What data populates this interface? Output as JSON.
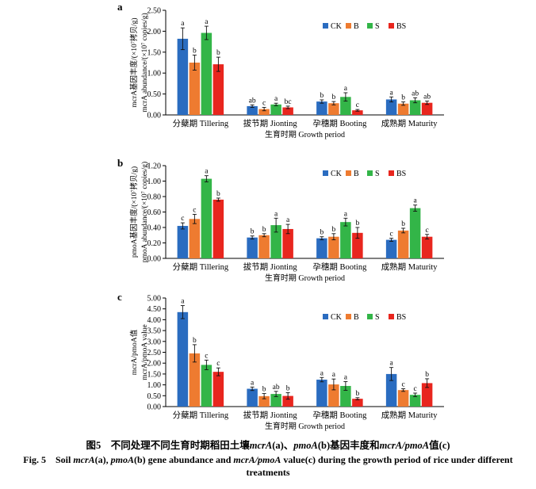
{
  "colors": {
    "CK": "#2a6cc0",
    "B": "#ee7b30",
    "S": "#33b548",
    "BS": "#e8261e"
  },
  "chart_data": [
    {
      "type": "bar",
      "panel_label": "a",
      "categories": [
        "分蘖期 Tillering",
        "拔节期 Jionting",
        "孕穗期 Booting",
        "成熟期 Maturity"
      ],
      "xlabel": "生育时期 Growth period",
      "ylabel_lines": [
        "mcrA基因丰度/(×10⁷拷贝/g)",
        "mcrA abundance/(×10⁷ copies/g)"
      ],
      "ylim": [
        0,
        2.5
      ],
      "yticks": [
        0,
        0.5,
        1.0,
        1.5,
        2.0,
        2.5
      ],
      "ytick_labels": [
        "0.00",
        "0.50",
        "1.00",
        "1.50",
        "2.00",
        "2.50"
      ],
      "legend": "top-right",
      "grid": false,
      "series": [
        {
          "name": "CK",
          "values": [
            1.82,
            0.21,
            0.32,
            0.37
          ],
          "errors": [
            0.26,
            0.03,
            0.04,
            0.06
          ],
          "letters": [
            "a",
            "ab",
            "b",
            "a"
          ]
        },
        {
          "name": "B",
          "values": [
            1.25,
            0.14,
            0.28,
            0.27
          ],
          "errors": [
            0.18,
            0.04,
            0.04,
            0.04
          ],
          "letters": [
            "b",
            "c",
            "b",
            "b"
          ]
        },
        {
          "name": "S",
          "values": [
            1.96,
            0.25,
            0.43,
            0.35
          ],
          "errors": [
            0.16,
            0.03,
            0.1,
            0.06
          ],
          "letters": [
            "a",
            "a",
            "a",
            "ab"
          ]
        },
        {
          "name": "BS",
          "values": [
            1.21,
            0.18,
            0.11,
            0.29
          ],
          "errors": [
            0.17,
            0.03,
            0.02,
            0.04
          ],
          "letters": [
            "b",
            "bc",
            "c",
            "ab"
          ]
        }
      ]
    },
    {
      "type": "bar",
      "panel_label": "b",
      "categories": [
        "分蘖期 Tillering",
        "拔节期 Jionting",
        "孕穗期 Booting",
        "成熟期 Maturity"
      ],
      "xlabel": "生育时期 Growth period",
      "ylabel_lines": [
        "pmoA基因丰度/(×10⁷拷贝/g)",
        "pmoA abundance/(×10⁷ copies/g)"
      ],
      "ylim": [
        0,
        1.2
      ],
      "yticks": [
        0,
        0.2,
        0.4,
        0.6,
        0.8,
        1.0,
        1.2
      ],
      "ytick_labels": [
        "0.00",
        "0.20",
        "0.40",
        "0.60",
        "0.80",
        "1.00",
        "1.20"
      ],
      "legend": "top-right",
      "grid": false,
      "series": [
        {
          "name": "CK",
          "values": [
            0.42,
            0.27,
            0.26,
            0.24
          ],
          "errors": [
            0.04,
            0.02,
            0.02,
            0.02
          ],
          "letters": [
            "c",
            "b",
            "b",
            "c"
          ]
        },
        {
          "name": "B",
          "values": [
            0.51,
            0.3,
            0.28,
            0.36
          ],
          "errors": [
            0.06,
            0.02,
            0.04,
            0.03
          ],
          "letters": [
            "c",
            "b",
            "b",
            "b"
          ]
        },
        {
          "name": "S",
          "values": [
            1.03,
            0.43,
            0.47,
            0.65
          ],
          "errors": [
            0.04,
            0.09,
            0.05,
            0.04
          ],
          "letters": [
            "a",
            "a",
            "a",
            "a"
          ]
        },
        {
          "name": "BS",
          "values": [
            0.76,
            0.38,
            0.33,
            0.28
          ],
          "errors": [
            0.02,
            0.06,
            0.07,
            0.03
          ],
          "letters": [
            "b",
            "a",
            "b",
            "c"
          ]
        }
      ]
    },
    {
      "type": "bar",
      "panel_label": "c",
      "categories": [
        "分蘖期 Tillering",
        "拔节期 Jionting",
        "孕穗期 Booting",
        "成熟期 Maturity"
      ],
      "xlabel": "生育时期 Growth period",
      "ylabel_lines": [
        "mcrA/pmoA值",
        "mcrA/pmoA value"
      ],
      "ylim": [
        0,
        5.0
      ],
      "yticks": [
        0,
        0.5,
        1.0,
        1.5,
        2.0,
        2.5,
        3.0,
        3.5,
        4.0,
        4.5,
        5.0
      ],
      "ytick_labels": [
        "0.00",
        "0.50",
        "1.00",
        "1.50",
        "2.00",
        "2.50",
        "3.00",
        "3.50",
        "4.00",
        "4.50",
        "5.00"
      ],
      "legend": "top-right",
      "grid": false,
      "series": [
        {
          "name": "CK",
          "values": [
            4.35,
            0.82,
            1.24,
            1.5
          ],
          "errors": [
            0.3,
            0.08,
            0.1,
            0.3
          ],
          "letters": [
            "a",
            "a",
            "a",
            "a"
          ]
        },
        {
          "name": "B",
          "values": [
            2.45,
            0.48,
            1.02,
            0.76
          ],
          "errors": [
            0.4,
            0.12,
            0.25,
            0.06
          ],
          "letters": [
            "b",
            "b",
            "a",
            "c"
          ]
        },
        {
          "name": "S",
          "values": [
            1.92,
            0.58,
            0.95,
            0.54
          ],
          "errors": [
            0.22,
            0.12,
            0.2,
            0.08
          ],
          "letters": [
            "c",
            "ab",
            "a",
            "c"
          ]
        },
        {
          "name": "BS",
          "values": [
            1.6,
            0.49,
            0.36,
            1.08
          ],
          "errors": [
            0.18,
            0.15,
            0.05,
            0.2
          ],
          "letters": [
            "c",
            "b",
            "b",
            "b"
          ]
        }
      ]
    }
  ],
  "caption": {
    "cn": {
      "p1": "图5　不同处理不同生育时期稻田土壤",
      "g1": "mcrA",
      "p2": "(a)、",
      "g2": "pmoA",
      "p3": "(b)基因丰度和",
      "g3": "mcrA/pmoA",
      "p4": "值(c)"
    },
    "en": {
      "p1": "Fig. 5　Soil ",
      "g1": "mcrA",
      "p2": "(a), ",
      "g2": "pmoA",
      "p3": "(b) gene abundance and ",
      "g3": "mcrA/pmoA",
      "p4": " value(c) during the growth period of rice under different treatments"
    }
  }
}
